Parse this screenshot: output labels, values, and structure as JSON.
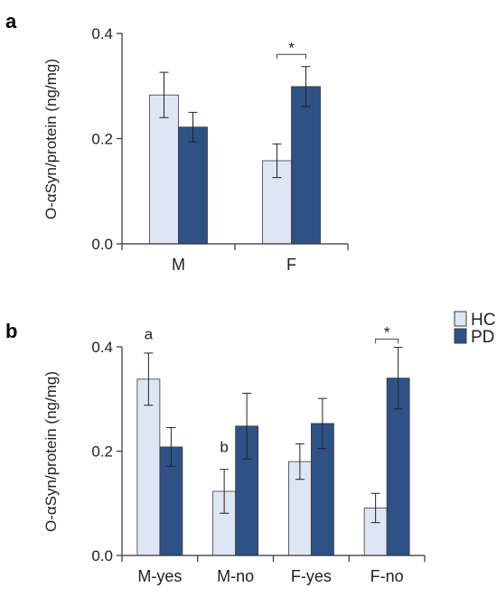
{
  "colors": {
    "HC": "#dde6f3",
    "PD": "#2e5286",
    "axis": "#333333",
    "bar_edge": "#3a3a3a"
  },
  "legend": {
    "position": "right",
    "items": [
      {
        "key": "HC",
        "label": "HC"
      },
      {
        "key": "PD",
        "label": "PD"
      }
    ]
  },
  "chart_data": [
    {
      "panel": "a",
      "type": "bar",
      "ylabel": "O-αSyn/protein (ng/mg)",
      "ylim": [
        0,
        0.4
      ],
      "yticks": [
        0.0,
        0.2,
        0.4
      ],
      "ytick_labels": [
        "0.0",
        "0.2",
        "0.4"
      ],
      "categories": [
        "M",
        "F"
      ],
      "series": [
        {
          "name": "HC",
          "values": [
            0.283,
            0.158
          ],
          "errors": [
            0.043,
            0.032
          ]
        },
        {
          "name": "PD",
          "values": [
            0.222,
            0.299
          ],
          "errors": [
            0.028,
            0.038
          ]
        }
      ],
      "annotations": [
        {
          "type": "bracket",
          "text": "*",
          "category": "F",
          "y": 0.36
        }
      ]
    },
    {
      "panel": "b",
      "type": "bar",
      "ylabel": "O-αSyn/protein (ng/mg)",
      "ylim": [
        0,
        0.4
      ],
      "yticks": [
        0.0,
        0.2,
        0.4
      ],
      "ytick_labels": [
        "0.0",
        "0.2",
        "0.4"
      ],
      "categories": [
        "M-yes",
        "M-no",
        "F-yes",
        "F-no"
      ],
      "series": [
        {
          "name": "HC",
          "values": [
            0.338,
            0.123,
            0.18,
            0.091
          ],
          "errors": [
            0.05,
            0.042,
            0.034,
            0.028
          ]
        },
        {
          "name": "PD",
          "values": [
            0.208,
            0.248,
            0.253,
            0.34
          ],
          "errors": [
            0.037,
            0.063,
            0.048,
            0.059
          ]
        }
      ],
      "annotations": [
        {
          "type": "letter",
          "text": "a",
          "category": "M-yes",
          "series": "HC",
          "y": 0.415
        },
        {
          "type": "letter",
          "text": "b",
          "category": "M-no",
          "series": "HC",
          "y": 0.198
        },
        {
          "type": "bracket",
          "text": "*",
          "category": "F-no",
          "y": 0.415
        }
      ]
    }
  ]
}
